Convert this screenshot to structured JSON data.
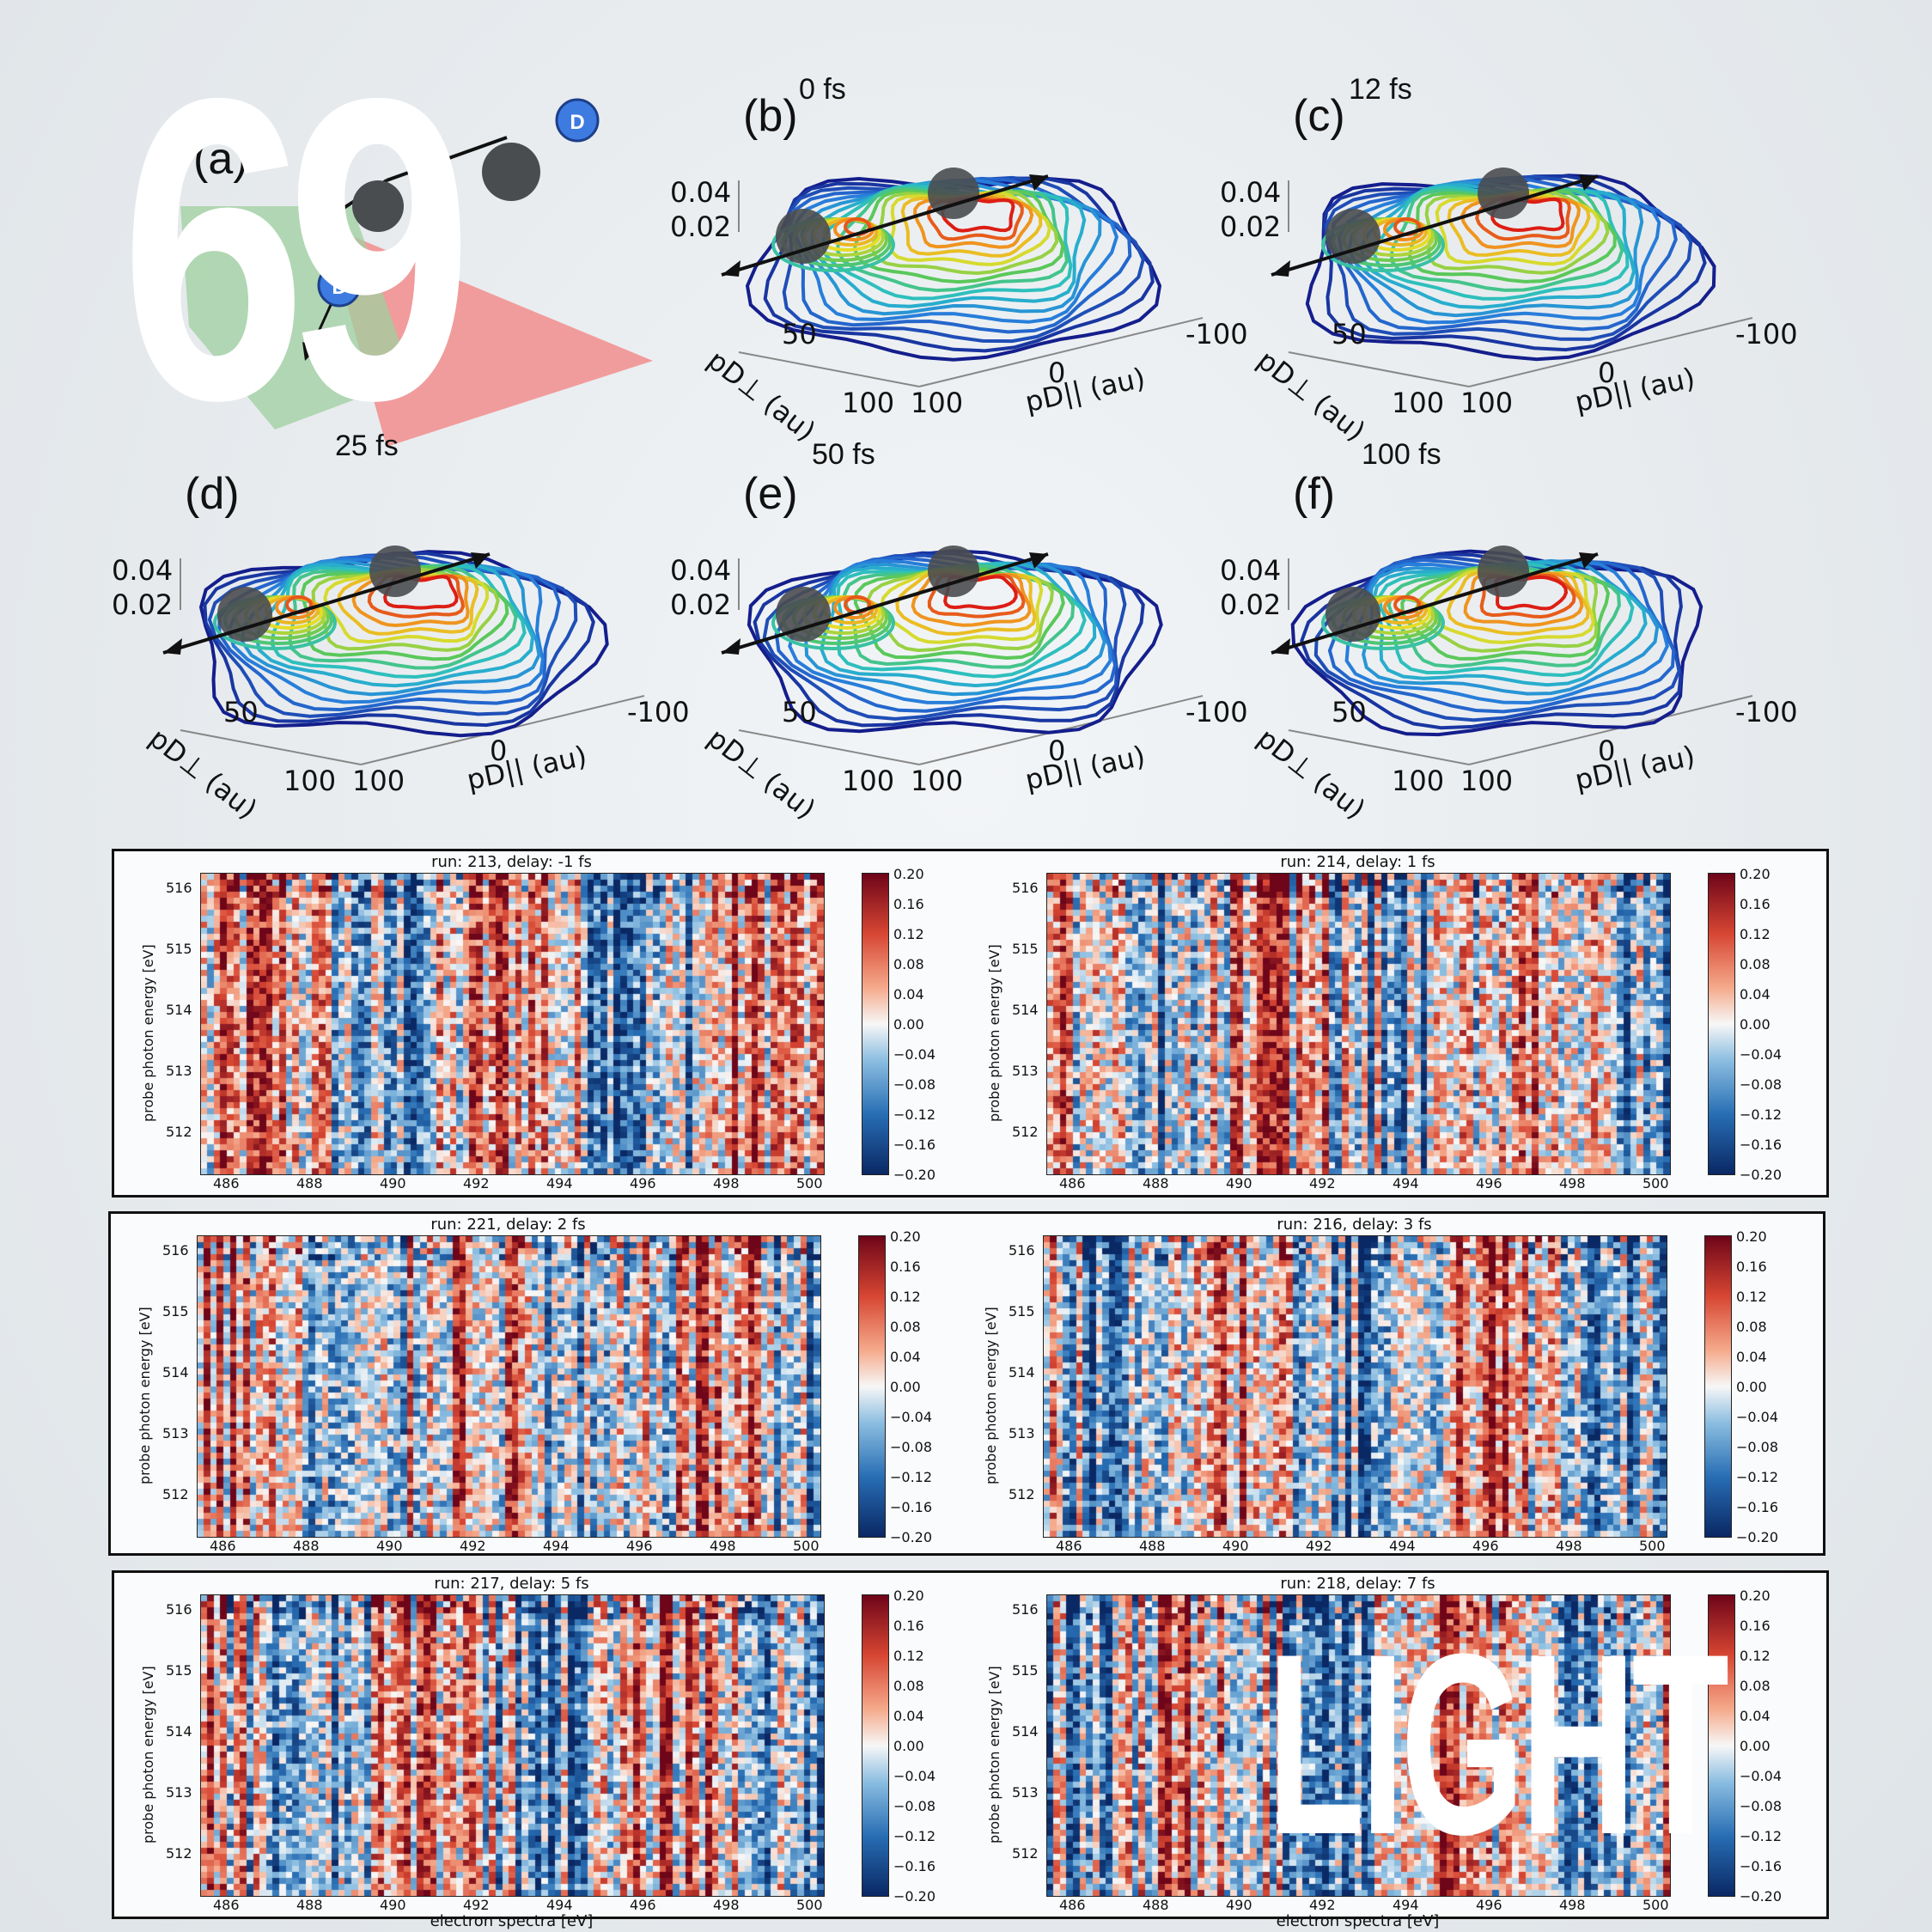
{
  "overlay": {
    "number": "69",
    "word": "LIGHT"
  },
  "molecule": {
    "panel_label": "(a)",
    "atom_label": "D",
    "colors": {
      "atom": "#3d7be0",
      "core": "#4a4d50",
      "plane_green": "#9fcf9f",
      "plane_red": "#f28d8d"
    }
  },
  "panels": [
    {
      "label": "(b)",
      "time": "0 fs",
      "z_ticks": [
        "0.04",
        "0.02"
      ],
      "perp_tick": "50",
      "perp_label": "pD⊥ (au)",
      "corner_perp": "100",
      "corner_par": "100",
      "par_mid": "0",
      "par_end": "-100",
      "par_label": "pD|| (au)",
      "below_time": "50 fs"
    },
    {
      "label": "(c)",
      "time": "12 fs",
      "z_ticks": [
        "0.04",
        "0.02"
      ],
      "perp_tick": "50",
      "perp_label": "pD⊥ (au)",
      "corner_perp": "100",
      "corner_par": "100",
      "par_mid": "0",
      "par_end": "-100",
      "par_label": "pD|| (au)",
      "below_time": "100 fs"
    },
    {
      "label": "(d)",
      "time": "",
      "z_ticks": [
        "0.04",
        "0.02"
      ],
      "perp_tick": "50",
      "perp_label": "pD⊥ (au)",
      "corner_perp": "100",
      "corner_par": "100",
      "par_mid": "0",
      "par_end": "-100",
      "par_label": "pD|| (au)",
      "below_time": ""
    },
    {
      "label": "(e)",
      "time": "",
      "z_ticks": [
        "0.04",
        "0.02"
      ],
      "perp_tick": "50",
      "perp_label": "pD⊥ (au)",
      "corner_perp": "100",
      "corner_par": "100",
      "par_mid": "0",
      "par_end": "-100",
      "par_label": "pD|| (au)",
      "below_time": ""
    },
    {
      "label": "(f)",
      "time": "",
      "z_ticks": [
        "0.04",
        "0.02"
      ],
      "perp_tick": "50",
      "perp_label": "pD⊥ (au)",
      "corner_perp": "100",
      "corner_par": "100",
      "par_mid": "0",
      "par_end": "-100",
      "par_label": "pD|| (au)",
      "below_time": ""
    }
  ],
  "panel_a_time": "25 fs",
  "heatmaps": {
    "ylabel": "probe photon energy [eV]",
    "xlabel": "electron spectra [eV]",
    "xticks": [
      "486",
      "488",
      "490",
      "492",
      "494",
      "496",
      "498",
      "500"
    ],
    "yticks": [
      "516",
      "515",
      "514",
      "513",
      "512"
    ],
    "colorbar_ticks": [
      "0.20",
      "0.16",
      "0.12",
      "0.08",
      "0.04",
      "0.00",
      "−0.04",
      "−0.08",
      "−0.12",
      "−0.16",
      "−0.20"
    ],
    "colorbar_range": [
      -0.2,
      0.2
    ],
    "plots": [
      {
        "title": "run: 213, delay: -1 fs",
        "show_xlabel": false
      },
      {
        "title": "run: 214, delay: 1 fs",
        "show_xlabel": false
      },
      {
        "title": "run: 221, delay: 2 fs",
        "show_xlabel": false
      },
      {
        "title": "run: 216, delay: 3 fs",
        "show_xlabel": false
      },
      {
        "title": "run: 217, delay: 5 fs",
        "show_xlabel": true
      },
      {
        "title": "run: 218, delay: 7 fs",
        "show_xlabel": true
      }
    ]
  }
}
